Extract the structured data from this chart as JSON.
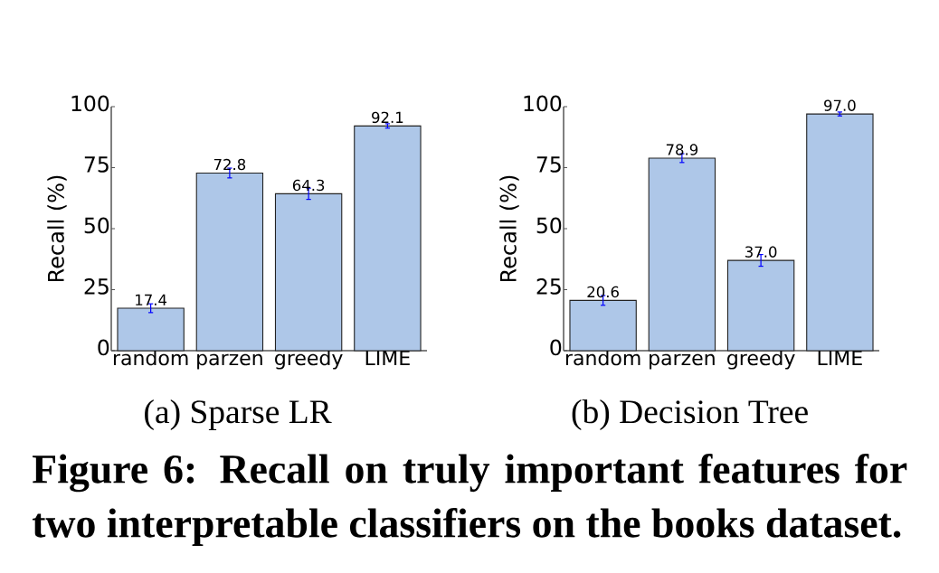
{
  "chart_data": [
    {
      "type": "bar",
      "title": "(a) Sparse LR",
      "ylabel": "Recall (%)",
      "categories": [
        "random",
        "parzen",
        "greedy",
        "LIME"
      ],
      "values": [
        17.4,
        72.8,
        64.3,
        92.1
      ],
      "errors": [
        1.8,
        2.0,
        2.3,
        0.9
      ],
      "value_labels": [
        "17.4",
        "72.8",
        "64.3",
        "92.1"
      ],
      "color": "#aec7e8",
      "ylim": [
        0,
        100
      ],
      "yticks": [
        0,
        25,
        50,
        75,
        100
      ],
      "annotations": [
        "Figure 6: Recall on truly important features for two interpretable classifiers on the books dataset."
      ]
    },
    {
      "type": "bar",
      "title": "(b) Decision Tree",
      "ylabel": "Recall (%)",
      "categories": [
        "random",
        "parzen",
        "greedy",
        "LIME"
      ],
      "values": [
        20.6,
        78.9,
        37.0,
        97.0
      ],
      "errors": [
        2.0,
        1.8,
        2.4,
        0.8
      ],
      "value_labels": [
        "20.6",
        "78.9",
        "37.0",
        "97.0"
      ],
      "color": "#aec7e8",
      "ylim": [
        0,
        100
      ],
      "yticks": [
        0,
        25,
        50,
        75,
        100
      ]
    }
  ]
}
